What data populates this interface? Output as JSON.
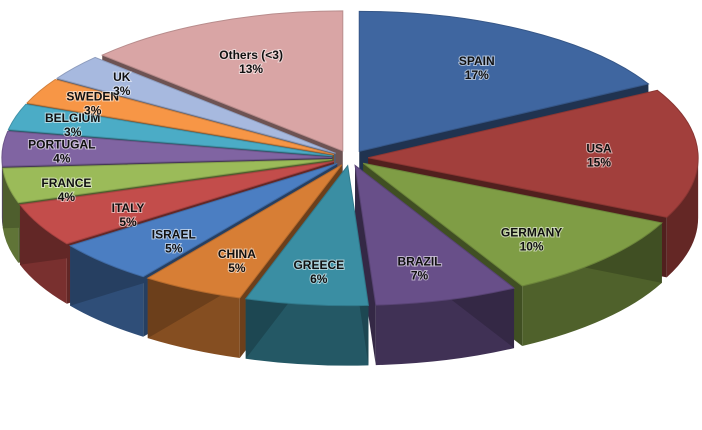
{
  "chart_data": {
    "type": "pie",
    "style": "3d-exploded",
    "title": "",
    "legend": "none",
    "slices": [
      {
        "label": "SPAIN",
        "value": 17,
        "pct_label": "17%",
        "color": "#3f66a0"
      },
      {
        "label": "USA",
        "value": 15,
        "pct_label": "15%",
        "color": "#a23f3c"
      },
      {
        "label": "GERMANY",
        "value": 10,
        "pct_label": "10%",
        "color": "#7f9d45"
      },
      {
        "label": "BRAZIL",
        "value": 7,
        "pct_label": "7%",
        "color": "#684f89"
      },
      {
        "label": "GREECE",
        "value": 6,
        "pct_label": "6%",
        "color": "#3a8ea3"
      },
      {
        "label": "CHINA",
        "value": 5,
        "pct_label": "5%",
        "color": "#d77e35"
      },
      {
        "label": "ISRAEL",
        "value": 5,
        "pct_label": "5%",
        "color": "#4b7ec2"
      },
      {
        "label": "ITALY",
        "value": 5,
        "pct_label": "5%",
        "color": "#c34d4b"
      },
      {
        "label": "FRANCE",
        "value": 4,
        "pct_label": "4%",
        "color": "#9bbb59"
      },
      {
        "label": "PORTUGAL",
        "value": 4,
        "pct_label": "4%",
        "color": "#8064a2"
      },
      {
        "label": "BELGIUM",
        "value": 3,
        "pct_label": "3%",
        "color": "#4bacc6"
      },
      {
        "label": "SWEDEN",
        "value": 3,
        "pct_label": "3%",
        "color": "#f79646"
      },
      {
        "label": "UK",
        "value": 3,
        "pct_label": "3%",
        "color": "#a7b9df"
      },
      {
        "label": "Others (<3)",
        "value": 13,
        "pct_label": "13%",
        "color": "#d9a5a5"
      }
    ]
  }
}
